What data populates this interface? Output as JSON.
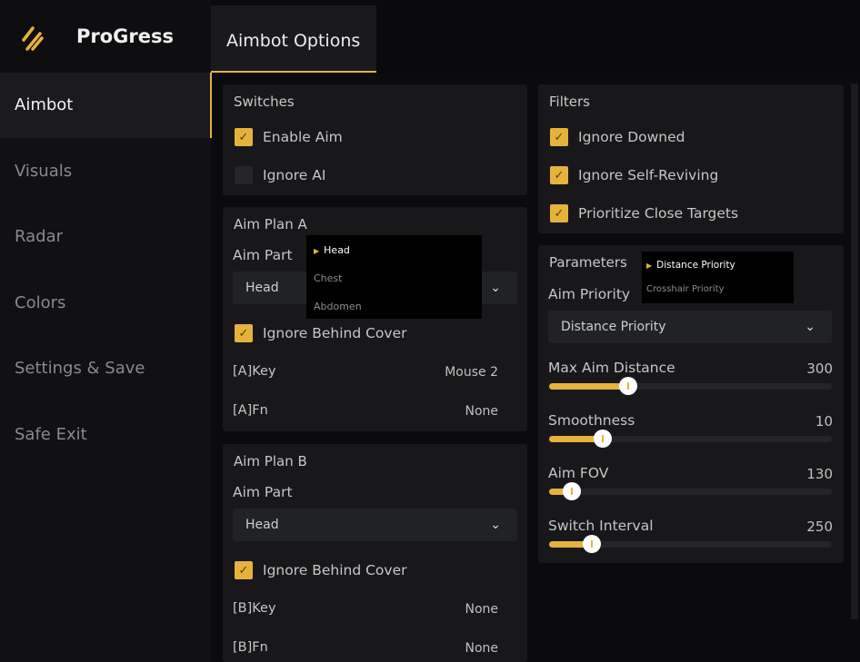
{
  "app": {
    "name": "ProGress",
    "logo_icon": "slashes-logo-icon",
    "accent": "#e6b23c"
  },
  "sidebar": {
    "items": [
      {
        "label": "Aimbot",
        "active": true
      },
      {
        "label": "Visuals"
      },
      {
        "label": "Radar"
      },
      {
        "label": "Colors"
      },
      {
        "label": "Settings & Save"
      },
      {
        "label": "Safe Exit"
      }
    ]
  },
  "tabs": [
    {
      "label": "Aimbot Options",
      "active": true
    }
  ],
  "switches": {
    "title": "Switches",
    "items": [
      {
        "label": "Enable Aim",
        "checked": true
      },
      {
        "label": "Ignore AI",
        "checked": false
      }
    ]
  },
  "plan_a": {
    "title": "Aim Plan A",
    "aim_part_label": "Aim Part",
    "aim_part": "Head",
    "options": [
      "Head",
      "Chest",
      "Abdomen"
    ],
    "ignore_cover": {
      "label": "Ignore Behind Cover",
      "checked": true
    },
    "key_label": "[A]Key",
    "key": "Mouse 2",
    "fn_label": "[A]Fn",
    "fn": "None"
  },
  "plan_b": {
    "title": "Aim Plan B",
    "aim_part_label": "Aim Part",
    "aim_part": "Head",
    "ignore_cover": {
      "label": "Ignore Behind Cover",
      "checked": true
    },
    "key_label": "[B]Key",
    "key": "None",
    "fn_label": "[B]Fn",
    "fn": "None"
  },
  "filters": {
    "title": "Filters",
    "items": [
      {
        "label": "Ignore Downed",
        "checked": true
      },
      {
        "label": "Ignore Self-Reviving",
        "checked": true
      },
      {
        "label": "Prioritize Close Targets",
        "checked": true
      }
    ]
  },
  "parameters": {
    "title": "Parameters",
    "priority_label": "Aim Priority",
    "priority": "Distance Priority",
    "options": [
      "Distance Priority",
      "Crosshair Priority"
    ],
    "sliders": [
      {
        "label": "Max Aim Distance",
        "value": "300",
        "fill": 0.28
      },
      {
        "label": "Smoothness",
        "value": "10",
        "fill": 0.19
      },
      {
        "label": "Aim FOV",
        "value": "130",
        "fill": 0.08
      },
      {
        "label": "Switch Interval",
        "value": "250",
        "fill": 0.15
      }
    ]
  }
}
